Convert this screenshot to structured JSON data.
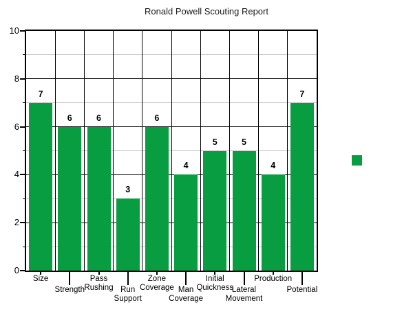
{
  "chart_data": {
    "type": "bar",
    "title": "Ronald Powell Scouting Report",
    "categories": [
      "Size",
      "Strength",
      "Pass Rushing",
      "Run Support",
      "Zone Coverage",
      "Man Coverage",
      "Initial Quickness",
      "Lateral Movement",
      "Production",
      "Potential"
    ],
    "values": [
      7,
      6,
      6,
      3,
      6,
      4,
      5,
      5,
      4,
      7
    ],
    "value_labels": [
      "7",
      "6",
      "6",
      "3",
      "6",
      "4",
      "5",
      "5",
      "4",
      "7"
    ],
    "xlabel": "",
    "ylabel": "",
    "ylim": [
      0,
      10
    ],
    "y_major_ticks": [
      0,
      2,
      4,
      6,
      8,
      10
    ],
    "y_minor_ticks": [
      1,
      3,
      5,
      7,
      9
    ],
    "bar_color": "#089d40",
    "grid": {
      "major_line_color": "#000000",
      "minor_line_color": "#c6c6c6",
      "vertical_lines": true
    },
    "legend": {
      "position": "right",
      "swatch_color": "#089d40",
      "label": ""
    }
  }
}
